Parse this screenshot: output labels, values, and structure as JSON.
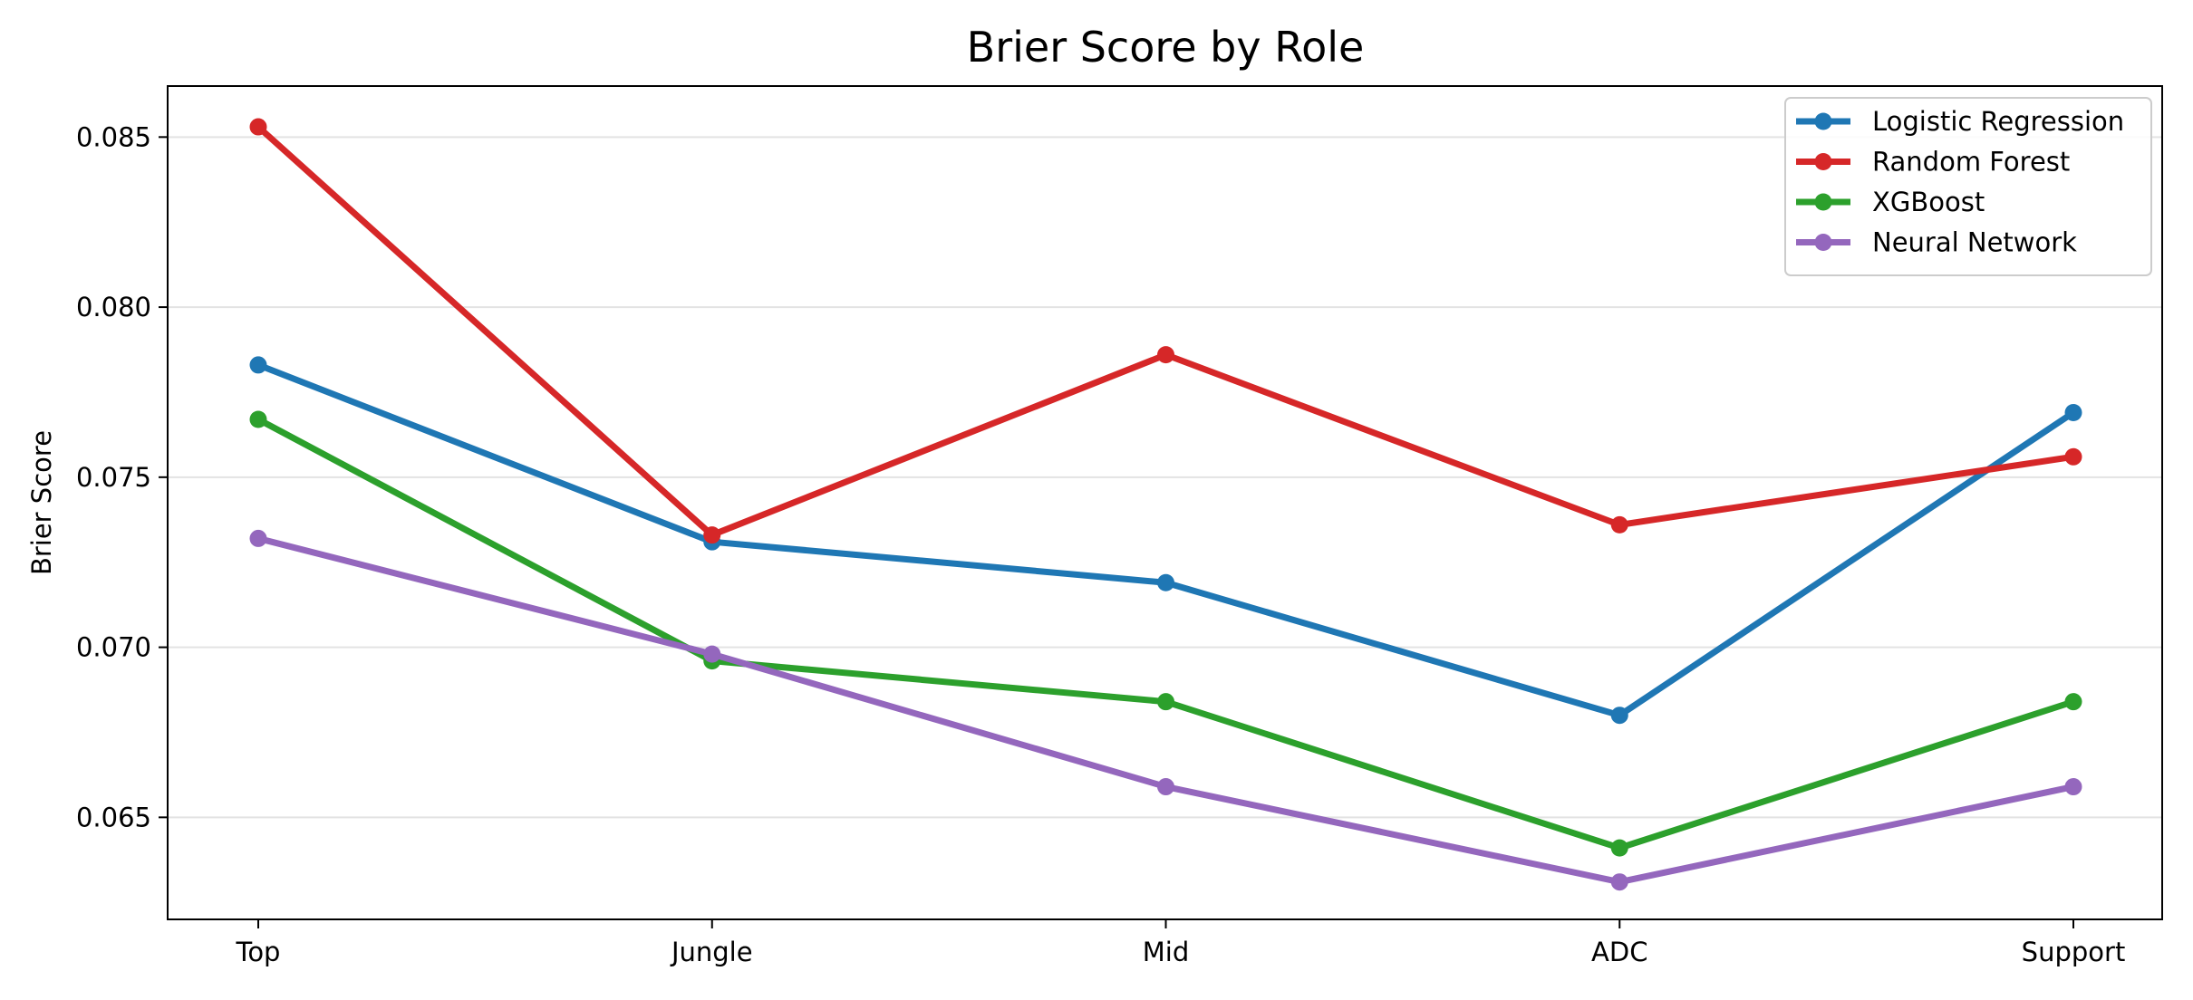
{
  "chart_data": {
    "type": "line",
    "title": "Brier Score by Role",
    "xlabel": "",
    "ylabel": "Brier Score",
    "categories": [
      "Top",
      "Jungle",
      "Mid",
      "ADC",
      "Support"
    ],
    "ylim": [
      0.062,
      0.0865
    ],
    "yticks": [
      0.065,
      0.07,
      0.075,
      0.08,
      0.085
    ],
    "ytick_labels": [
      "0.065",
      "0.070",
      "0.075",
      "0.080",
      "0.085"
    ],
    "grid": "horizontal",
    "legend_position": "top-right",
    "series": [
      {
        "name": "Logistic Regression",
        "color": "#1f77b4",
        "values": [
          0.0783,
          0.0731,
          0.0719,
          0.068,
          0.0769
        ]
      },
      {
        "name": "Random Forest",
        "color": "#d62728",
        "values": [
          0.0853,
          0.0733,
          0.0786,
          0.0736,
          0.0756
        ]
      },
      {
        "name": "XGBoost",
        "color": "#2ca02c",
        "values": [
          0.0767,
          0.0696,
          0.0684,
          0.0641,
          0.0684
        ]
      },
      {
        "name": "Neural Network",
        "color": "#9467bd",
        "values": [
          0.0732,
          0.0698,
          0.0659,
          0.0631,
          0.0659
        ]
      }
    ]
  }
}
